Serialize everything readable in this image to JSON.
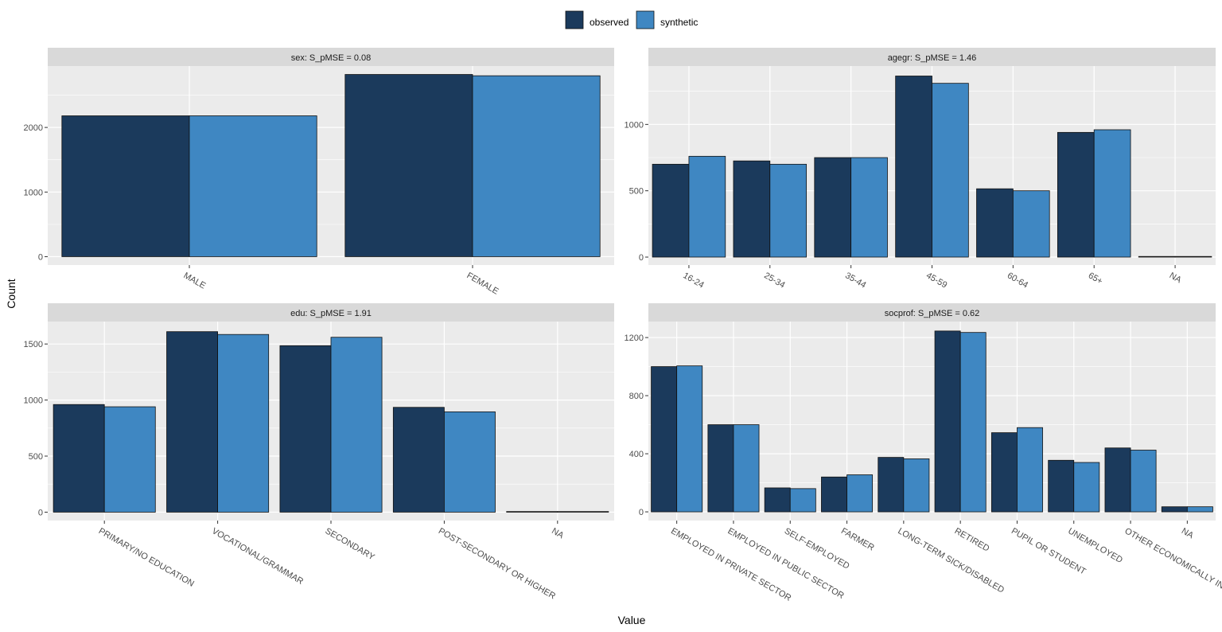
{
  "legend": {
    "items": [
      {
        "label": "observed",
        "color": "#1B3A5C"
      },
      {
        "label": "synthetic",
        "color": "#3F87C2"
      }
    ]
  },
  "axis": {
    "xlabel": "Value",
    "ylabel": "Count"
  },
  "chart_data": [
    {
      "type": "bar",
      "title": "sex: S_pMSE = 0.08",
      "categories": [
        "MALE",
        "FEMALE"
      ],
      "series": [
        {
          "name": "observed",
          "values": [
            2180,
            2820
          ]
        },
        {
          "name": "synthetic",
          "values": [
            2180,
            2800
          ]
        }
      ],
      "yticks": [
        0,
        1000,
        2000
      ],
      "ylim": [
        -130,
        2950
      ]
    },
    {
      "type": "bar",
      "title": "agegr: S_pMSE = 1.46",
      "categories": [
        "16-24",
        "25-34",
        "35-44",
        "45-59",
        "60-64",
        "65+",
        "NA"
      ],
      "series": [
        {
          "name": "observed",
          "values": [
            700,
            725,
            750,
            1365,
            515,
            940,
            0
          ]
        },
        {
          "name": "synthetic",
          "values": [
            760,
            700,
            750,
            1310,
            500,
            960,
            0
          ]
        }
      ],
      "yticks": [
        0,
        500,
        1000
      ],
      "ylim": [
        -60,
        1440
      ]
    },
    {
      "type": "bar",
      "title": "edu: S_pMSE = 1.91",
      "categories": [
        "PRIMARY/NO EDUCATION",
        "VOCATIONAL/GRAMMAR",
        "SECONDARY",
        "POST-SECONDARY OR HIGHER",
        "NA"
      ],
      "series": [
        {
          "name": "observed",
          "values": [
            960,
            1610,
            1485,
            935,
            5
          ]
        },
        {
          "name": "synthetic",
          "values": [
            940,
            1585,
            1560,
            895,
            5
          ]
        }
      ],
      "yticks": [
        0,
        500,
        1000,
        1500
      ],
      "ylim": [
        -75,
        1700
      ]
    },
    {
      "type": "bar",
      "title": "socprof: S_pMSE = 0.62",
      "categories": [
        "EMPLOYED IN PRIVATE SECTOR",
        "EMPLOYED IN PUBLIC SECTOR",
        "SELF-EMPLOYED",
        "FARMER",
        "LONG-TERM SICK/DISABLED",
        "RETIRED",
        "PUPIL OR STUDENT",
        "UNEMPLOYED",
        "OTHER ECONOMICALLY INACTIVE",
        "NA"
      ],
      "series": [
        {
          "name": "observed",
          "values": [
            1000,
            600,
            165,
            240,
            375,
            1245,
            545,
            355,
            440,
            35
          ]
        },
        {
          "name": "synthetic",
          "values": [
            1005,
            600,
            160,
            255,
            365,
            1235,
            580,
            340,
            425,
            35
          ]
        }
      ],
      "yticks": [
        0,
        400,
        800,
        1200
      ],
      "ylim": [
        -60,
        1310
      ]
    }
  ]
}
